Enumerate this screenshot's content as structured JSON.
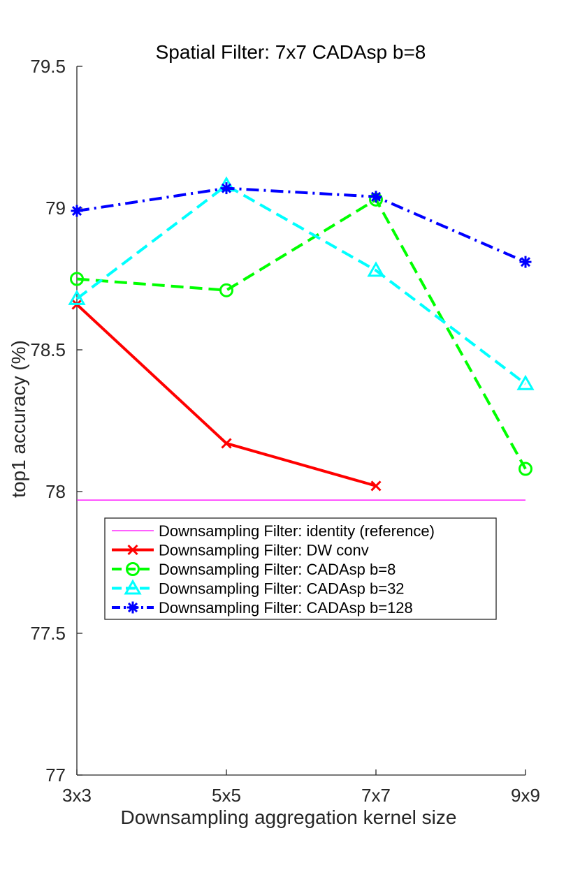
{
  "chart_data": {
    "type": "line",
    "title": "Spatial Filter: 7x7 CADAsp b=8",
    "xlabel": "Downsampling aggregation kernel size",
    "ylabel": "top1 accuracy (%)",
    "categories": [
      "3x3",
      "5x5",
      "7x7",
      "9x9"
    ],
    "ylim": [
      77,
      79.5
    ],
    "yticks": [
      "77",
      "77.5",
      "78",
      "78.5",
      "79",
      "79.5"
    ],
    "reference": {
      "name": "Downsampling Filter: identity (reference)",
      "value": 77.97,
      "color": "#ff00ff"
    },
    "series": [
      {
        "name": "Downsampling Filter: DW conv",
        "values": [
          78.66,
          78.17,
          78.02,
          null
        ],
        "color": "#ff0000",
        "marker": "x",
        "dash": "solid"
      },
      {
        "name": "Downsampling Filter: CADAsp b=8",
        "values": [
          78.75,
          78.71,
          79.03,
          78.08
        ],
        "color": "#00ff00",
        "marker": "o",
        "dash": "dashed"
      },
      {
        "name": "Downsampling Filter: CADAsp b=32",
        "values": [
          78.68,
          79.08,
          78.78,
          78.38
        ],
        "color": "#00ffff",
        "marker": "triangle",
        "dash": "dashed"
      },
      {
        "name": "Downsampling Filter: CADAsp b=128",
        "values": [
          78.99,
          79.07,
          79.04,
          78.81
        ],
        "color": "#0000ff",
        "marker": "asterisk",
        "dash": "dashdot"
      }
    ],
    "legend_position": "lower-left"
  }
}
